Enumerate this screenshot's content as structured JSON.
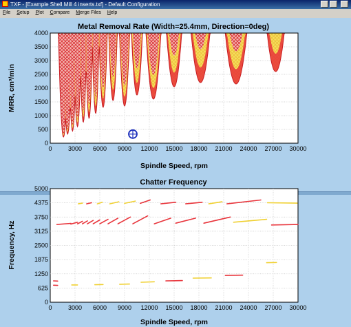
{
  "window": {
    "title": "TXF - [Example Shell Mill 4 inserts.txf] - Default Configuration"
  },
  "menu": [
    {
      "label": "File",
      "mnemonic": "F"
    },
    {
      "label": "Setup",
      "mnemonic": "S"
    },
    {
      "label": "Plot",
      "mnemonic": "P"
    },
    {
      "label": "Compare",
      "mnemonic": "C"
    },
    {
      "label": "Merge Files",
      "mnemonic": "M"
    },
    {
      "label": "Help",
      "mnemonic": "H"
    }
  ],
  "colors": {
    "unstable_hatch": "#d8242a",
    "stable_band": "#f4ee40",
    "lobe_red": "#e8333a",
    "cursor": "#1a2dbb",
    "panel_bg": "#aed0ec"
  },
  "chart_data": [
    {
      "type": "area",
      "title": "Metal Removal Rate (Width=25.4mm, Direction=0deg)",
      "xlabel": "Spindle Speed, rpm",
      "ylabel": "MRR, cm³/min",
      "xlim": [
        0,
        30000
      ],
      "ylim": [
        0,
        4000
      ],
      "xticks": [
        "0",
        "3000",
        "6000",
        "9000",
        "12000",
        "15000",
        "18000",
        "21000",
        "24000",
        "27000",
        "30000"
      ],
      "yticks": [
        "0",
        "500",
        "1000",
        "1500",
        "2000",
        "2500",
        "3000",
        "3500",
        "4000"
      ],
      "grid": true,
      "lobes": [
        {
          "x": 1600,
          "y": 220
        },
        {
          "x": 2100,
          "y": 330
        },
        {
          "x": 2700,
          "y": 440
        },
        {
          "x": 3300,
          "y": 600
        },
        {
          "x": 4000,
          "y": 760
        },
        {
          "x": 4700,
          "y": 900
        },
        {
          "x": 5500,
          "y": 1080
        },
        {
          "x": 6400,
          "y": 1300
        },
        {
          "x": 7600,
          "y": 1550
        },
        {
          "x": 9000,
          "y": 1350
        },
        {
          "x": 10500,
          "y": 1750
        },
        {
          "x": 12500,
          "y": 1600
        },
        {
          "x": 15000,
          "y": 2050
        },
        {
          "x": 18200,
          "y": 2200
        },
        {
          "x": 22500,
          "y": 2150
        },
        {
          "x": 27300,
          "y": 2600
        }
      ],
      "cursor": {
        "x": 10000,
        "y": 330
      }
    },
    {
      "type": "scatter",
      "title": "Chatter Frequency",
      "xlabel": "Spindle Speed, rpm",
      "ylabel": "Frequency, Hz",
      "xlim": [
        0,
        30000
      ],
      "ylim": [
        0,
        5000
      ],
      "xticks": [
        "0",
        "3000",
        "6000",
        "9000",
        "12000",
        "15000",
        "18000",
        "21000",
        "24000",
        "27000",
        "30000"
      ],
      "yticks": [
        "0",
        "625",
        "1250",
        "1875",
        "2500",
        "3125",
        "3750",
        "4375",
        "5000"
      ],
      "grid": true,
      "segments": [
        {
          "x1": 800,
          "y1": 3420,
          "x2": 2500,
          "y2": 3470,
          "color": "red"
        },
        {
          "x1": 2500,
          "y1": 3440,
          "x2": 3300,
          "y2": 3520,
          "color": "red"
        },
        {
          "x1": 3300,
          "y1": 3450,
          "x2": 3900,
          "y2": 3560,
          "color": "red"
        },
        {
          "x1": 3900,
          "y1": 3450,
          "x2": 4500,
          "y2": 3580,
          "color": "red"
        },
        {
          "x1": 4500,
          "y1": 3450,
          "x2": 5200,
          "y2": 3600,
          "color": "red"
        },
        {
          "x1": 5200,
          "y1": 3450,
          "x2": 6000,
          "y2": 3620,
          "color": "red"
        },
        {
          "x1": 6000,
          "y1": 3450,
          "x2": 7000,
          "y2": 3650,
          "color": "red"
        },
        {
          "x1": 7000,
          "y1": 3450,
          "x2": 8200,
          "y2": 3700,
          "color": "red"
        },
        {
          "x1": 8200,
          "y1": 3450,
          "x2": 9700,
          "y2": 3750,
          "color": "red"
        },
        {
          "x1": 10000,
          "y1": 3450,
          "x2": 11800,
          "y2": 3800,
          "color": "red"
        },
        {
          "x1": 12600,
          "y1": 3450,
          "x2": 14600,
          "y2": 3700,
          "color": "red"
        },
        {
          "x1": 15200,
          "y1": 3480,
          "x2": 17600,
          "y2": 3700,
          "color": "red"
        },
        {
          "x1": 18600,
          "y1": 3480,
          "x2": 21800,
          "y2": 3750,
          "color": "red"
        },
        {
          "x1": 22200,
          "y1": 3520,
          "x2": 26200,
          "y2": 3650,
          "color": "yellow"
        },
        {
          "x1": 26800,
          "y1": 3400,
          "x2": 30000,
          "y2": 3420,
          "color": "red"
        },
        {
          "x1": 3400,
          "y1": 4330,
          "x2": 3900,
          "y2": 4360,
          "color": "yellow"
        },
        {
          "x1": 4400,
          "y1": 4330,
          "x2": 5000,
          "y2": 4380,
          "color": "red"
        },
        {
          "x1": 5700,
          "y1": 4330,
          "x2": 6300,
          "y2": 4400,
          "color": "yellow"
        },
        {
          "x1": 7200,
          "y1": 4330,
          "x2": 8300,
          "y2": 4420,
          "color": "yellow"
        },
        {
          "x1": 9000,
          "y1": 4350,
          "x2": 10300,
          "y2": 4450,
          "color": "yellow"
        },
        {
          "x1": 10900,
          "y1": 4350,
          "x2": 12100,
          "y2": 4500,
          "color": "red"
        },
        {
          "x1": 13400,
          "y1": 4330,
          "x2": 15200,
          "y2": 4400,
          "color": "red"
        },
        {
          "x1": 16400,
          "y1": 4330,
          "x2": 18400,
          "y2": 4400,
          "color": "red"
        },
        {
          "x1": 19200,
          "y1": 4330,
          "x2": 20800,
          "y2": 4420,
          "color": "yellow"
        },
        {
          "x1": 21400,
          "y1": 4330,
          "x2": 25500,
          "y2": 4500,
          "color": "red"
        },
        {
          "x1": 26300,
          "y1": 4380,
          "x2": 29900,
          "y2": 4360,
          "color": "yellow"
        },
        {
          "x1": 400,
          "y1": 940,
          "x2": 900,
          "y2": 930,
          "color": "red"
        },
        {
          "x1": 400,
          "y1": 750,
          "x2": 900,
          "y2": 740,
          "color": "red"
        },
        {
          "x1": 2600,
          "y1": 760,
          "x2": 3300,
          "y2": 760,
          "color": "yellow"
        },
        {
          "x1": 5400,
          "y1": 770,
          "x2": 6400,
          "y2": 780,
          "color": "yellow"
        },
        {
          "x1": 8400,
          "y1": 790,
          "x2": 9600,
          "y2": 800,
          "color": "yellow"
        },
        {
          "x1": 11000,
          "y1": 880,
          "x2": 12600,
          "y2": 900,
          "color": "yellow"
        },
        {
          "x1": 14000,
          "y1": 940,
          "x2": 16000,
          "y2": 950,
          "color": "red"
        },
        {
          "x1": 17300,
          "y1": 1060,
          "x2": 19500,
          "y2": 1070,
          "color": "yellow"
        },
        {
          "x1": 21200,
          "y1": 1180,
          "x2": 23300,
          "y2": 1190,
          "color": "red"
        },
        {
          "x1": 26200,
          "y1": 1740,
          "x2": 27400,
          "y2": 1750,
          "color": "yellow"
        }
      ]
    }
  ]
}
